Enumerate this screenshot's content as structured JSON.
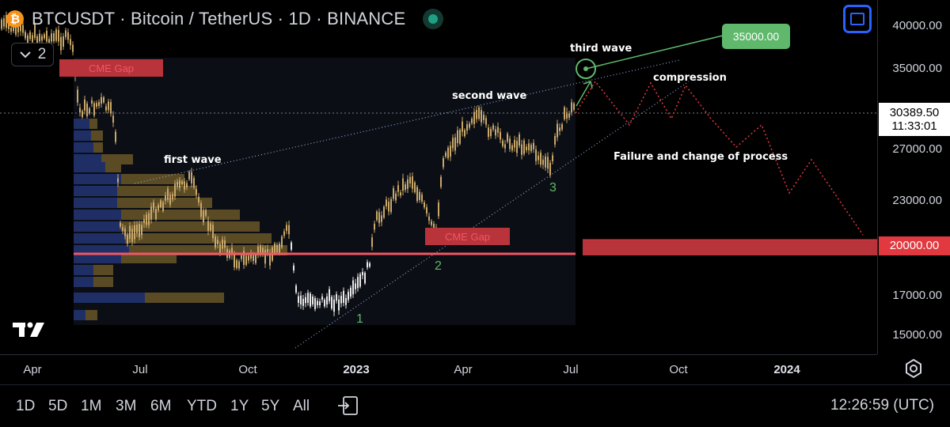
{
  "header": {
    "symbol_title": "BTCUSDT · Bitcoin / TetherUS · 1D · BINANCE",
    "coin_icon": "bitcoin-icon",
    "collapse_label": "2"
  },
  "price_axis": {
    "ticks": [
      "40000.00",
      "35000.00",
      "27000.00",
      "23000.00",
      "17000.00",
      "15000.00"
    ],
    "current_price": "30389.50",
    "countdown": "11:33:01",
    "target_level": "20000.00"
  },
  "time_axis": {
    "labels": [
      "Apr",
      "Jul",
      "Oct",
      "2023",
      "Apr",
      "Jul",
      "Oct",
      "2024"
    ]
  },
  "annotations": {
    "first_wave": "first wave",
    "second_wave": "second wave",
    "third_wave": "third wave",
    "compression": "compression",
    "failure": "Failure and change of process",
    "cme_gap_top": "CME Gap",
    "cme_gap_mid": "CME Gap",
    "wave_1": "1",
    "wave_2": "2",
    "wave_3": "3",
    "target": "35000.00"
  },
  "timeframes": [
    "1D",
    "5D",
    "1M",
    "3M",
    "6M",
    "YTD",
    "1Y",
    "5Y",
    "All"
  ],
  "clock": "12:26:59 (UTC)",
  "colors": {
    "background": "#000000",
    "candle": "#c9a86a",
    "candle_dim": "#e8e8e8",
    "support_line": "#f25764",
    "target_zone": "#b8333a",
    "green_annotation": "#5fb86b",
    "projection": "#e1393f",
    "accent_blue": "#2962ff"
  }
}
